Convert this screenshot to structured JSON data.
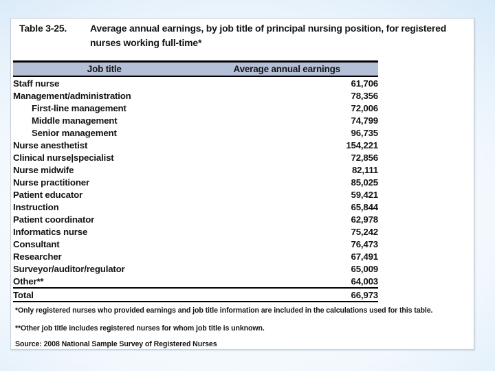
{
  "header": {
    "table_number": "Table 3-25.",
    "caption": "Average annual earnings, by job title of principal nursing position, for registered nurses working full-time*"
  },
  "table": {
    "columns": [
      "Job title",
      "Average annual earnings"
    ],
    "rows": [
      {
        "label": "Staff nurse",
        "value": "61,706",
        "indent": false
      },
      {
        "label": "Management/administration",
        "value": "78,356",
        "indent": false
      },
      {
        "label": "First-line management",
        "value": "72,006",
        "indent": true
      },
      {
        "label": "Middle management",
        "value": "74,799",
        "indent": true
      },
      {
        "label": "Senior management",
        "value": "96,735",
        "indent": true
      },
      {
        "label": "Nurse anesthetist",
        "value": "154,221",
        "indent": false
      },
      {
        "label": "Clinical nurse|specialist",
        "value": "72,856",
        "indent": false
      },
      {
        "label": "Nurse midwife",
        "value": "82,111",
        "indent": false
      },
      {
        "label": "Nurse practitioner",
        "value": "85,025",
        "indent": false
      },
      {
        "label": "Patient educator",
        "value": "59,421",
        "indent": false
      },
      {
        "label": "Instruction",
        "value": "65,844",
        "indent": false
      },
      {
        "label": "Patient coordinator",
        "value": "62,978",
        "indent": false
      },
      {
        "label": "Informatics nurse",
        "value": "75,242",
        "indent": false
      },
      {
        "label": "Consultant",
        "value": "76,473",
        "indent": false
      },
      {
        "label": "Researcher",
        "value": "67,491",
        "indent": false
      },
      {
        "label": "Surveyor/auditor/regulator",
        "value": "65,009",
        "indent": false
      },
      {
        "label": "Other**",
        "value": "64,003",
        "indent": false
      }
    ],
    "total": {
      "label": "Total",
      "value": "66,973"
    }
  },
  "footnotes": [
    "*Only registered nurses who provided earnings and job title information are included in the calculations used for this table.",
    "**Other job title includes registered nurses for whom job title is unknown.",
    "Source: 2008 National Sample Survey of Registered Nurses"
  ],
  "colors": {
    "header_fill": "#b4bfd8",
    "text": "#141414",
    "slide_corner_blue": "#a6cfef"
  }
}
